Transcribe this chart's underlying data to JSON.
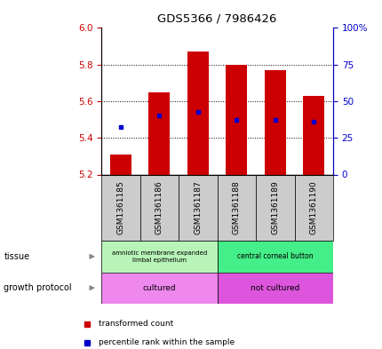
{
  "title": "GDS5366 / 7986426",
  "samples": [
    "GSM1361185",
    "GSM1361186",
    "GSM1361187",
    "GSM1361188",
    "GSM1361189",
    "GSM1361190"
  ],
  "bar_values": [
    5.31,
    5.65,
    5.87,
    5.8,
    5.77,
    5.63
  ],
  "bar_bottom": 5.2,
  "percentile_values": [
    5.46,
    5.52,
    5.54,
    5.5,
    5.5,
    5.49
  ],
  "bar_color": "#cc0000",
  "percentile_color": "#0000cc",
  "ylim_left": [
    5.2,
    6.0
  ],
  "ylim_right": [
    0,
    100
  ],
  "yticks_left": [
    5.2,
    5.4,
    5.6,
    5.8,
    6.0
  ],
  "yticks_right": [
    0,
    25,
    50,
    75,
    100
  ],
  "ytick_labels_right": [
    "0",
    "25",
    "50",
    "75",
    "100%"
  ],
  "tissue_label": "tissue",
  "growth_label": "growth protocol",
  "legend_red": "transformed count",
  "legend_blue": "percentile rank within the sample",
  "background_color": "#ffffff",
  "plot_bg": "#ffffff",
  "left_tick_color": "#cc0000",
  "right_tick_color": "#0000cc",
  "bar_width": 0.55,
  "tissue_light_green": "#b8f4b8",
  "tissue_dark_green": "#44ee88",
  "growth_pink": "#ee88ee",
  "growth_magenta": "#dd55dd",
  "sample_box_color": "#cccccc",
  "fig_width": 4.31,
  "fig_height": 3.93,
  "dpi": 100
}
